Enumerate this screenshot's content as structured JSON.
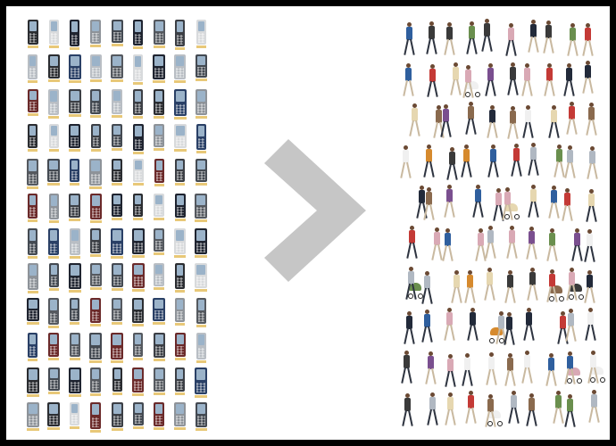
{
  "image": {
    "left_panel": "phone-catalog-grid",
    "center_icon": "chevron-right-icon",
    "right_panel": "pedestrian-cutout-grid"
  },
  "phone_grid": {
    "columns": 9,
    "rows": 12,
    "body_colors": [
      "#2b2d31",
      "#3c3f45",
      "#55595f",
      "#8e9399",
      "#b9bec4",
      "#1f2430",
      "#6b2a2a",
      "#2a4066",
      "#d8dadc",
      "#444a52"
    ]
  },
  "people_grid": {
    "columns": 10,
    "rows": 10,
    "clothing_colors": [
      "#c43a36",
      "#2f5f9e",
      "#e6d7b0",
      "#3a3a3a",
      "#8a6a4e",
      "#f0f0f0",
      "#6a8f4e",
      "#d68a2e",
      "#7a4f8f",
      "#b0b8c2",
      "#222a3a",
      "#d9a9b5"
    ]
  },
  "colors": {
    "frame_border": "#000000",
    "background": "#ffffff",
    "arrow": "#c6c6c6"
  }
}
